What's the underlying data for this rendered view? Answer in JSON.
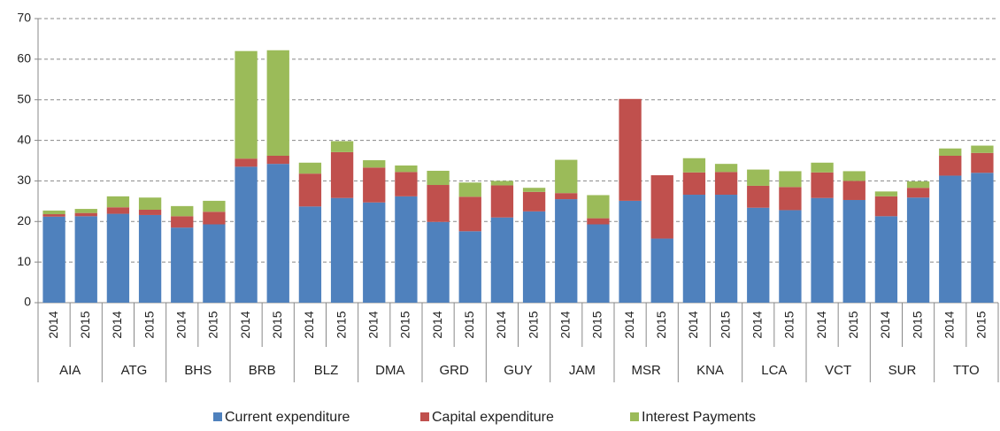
{
  "chart_data": {
    "type": "stacked_bar",
    "categories": [
      "2014",
      "2015",
      "2014",
      "2015",
      "2014",
      "2015",
      "2014",
      "2015",
      "2014",
      "2015",
      "2014",
      "2015",
      "2014",
      "2015",
      "2014",
      "2015",
      "2014",
      "2015",
      "2014",
      "2015",
      "2014",
      "2015",
      "2014",
      "2015",
      "2014",
      "2015",
      "2014",
      "2015",
      "2014",
      "2015"
    ],
    "groups": [
      "AIA",
      "ATG",
      "BHS",
      "BRB",
      "BLZ",
      "DMA",
      "GRD",
      "GUY",
      "JAM",
      "MSR",
      "KNA",
      "LCA",
      "VCT",
      "SUR",
      "TTO"
    ],
    "series": [
      {
        "name": "Current expenditure",
        "color": "#4f81bd",
        "values": [
          21.2,
          21.3,
          21.9,
          21.6,
          18.5,
          19.3,
          33.5,
          34.2,
          23.7,
          25.8,
          24.7,
          26.2,
          19.9,
          17.6,
          21.0,
          22.5,
          25.5,
          19.3,
          25.1,
          15.8,
          26.6,
          26.6,
          23.4,
          22.8,
          25.8,
          25.3,
          21.3,
          25.9,
          31.3,
          32.0
        ]
      },
      {
        "name": "Capital expenditure",
        "color": "#c0504d",
        "values": [
          0.6,
          0.8,
          1.6,
          1.3,
          2.8,
          3.1,
          2.0,
          2.0,
          8.1,
          11.3,
          8.6,
          6.0,
          9.1,
          8.5,
          7.9,
          4.8,
          1.5,
          1.5,
          25.1,
          15.6,
          5.5,
          5.6,
          5.4,
          5.7,
          6.3,
          4.7,
          4.9,
          2.4,
          4.9,
          4.9
        ]
      },
      {
        "name": "Interest Payments",
        "color": "#9bbb59",
        "values": [
          0.9,
          1.0,
          2.7,
          3.0,
          2.5,
          2.7,
          26.5,
          26.0,
          2.7,
          2.7,
          1.8,
          1.6,
          3.5,
          3.5,
          1.1,
          1.0,
          8.2,
          5.7,
          0,
          0,
          3.5,
          2.0,
          4.0,
          3.9,
          2.4,
          2.4,
          1.2,
          1.6,
          1.8,
          1.8
        ]
      }
    ],
    "ylim": [
      0,
      70
    ],
    "yticks": [
      0,
      10,
      20,
      30,
      40,
      50,
      60,
      70
    ],
    "grid": true,
    "legend": "bottom"
  }
}
